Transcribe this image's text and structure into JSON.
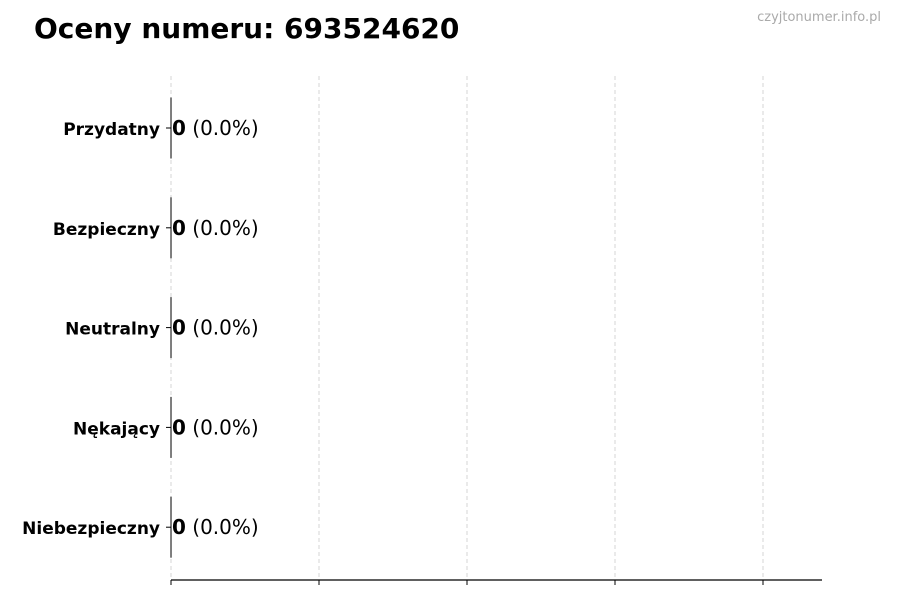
{
  "chart_data": {
    "type": "bar",
    "orientation": "horizontal",
    "title": "Oceny numeru: 693524620",
    "watermark": "czyjtonumer.info.pl",
    "categories": [
      "Przydatny",
      "Bezpieczny",
      "Neutralny",
      "Nękający",
      "Niebezpieczny"
    ],
    "values": [
      0,
      0,
      0,
      0,
      0
    ],
    "value_labels": [
      "0",
      "0",
      "0",
      "0",
      "0"
    ],
    "percent_labels": [
      "(0.0%)",
      "(0.0%)",
      "(0.0%)",
      "(0.0%)",
      "(0.0%)"
    ],
    "x_tick_count": 5,
    "x_tick_labels_shown": false,
    "grid": "vertical dashed",
    "bar_edge_color": "#000000",
    "grid_color": "#cccccc"
  }
}
